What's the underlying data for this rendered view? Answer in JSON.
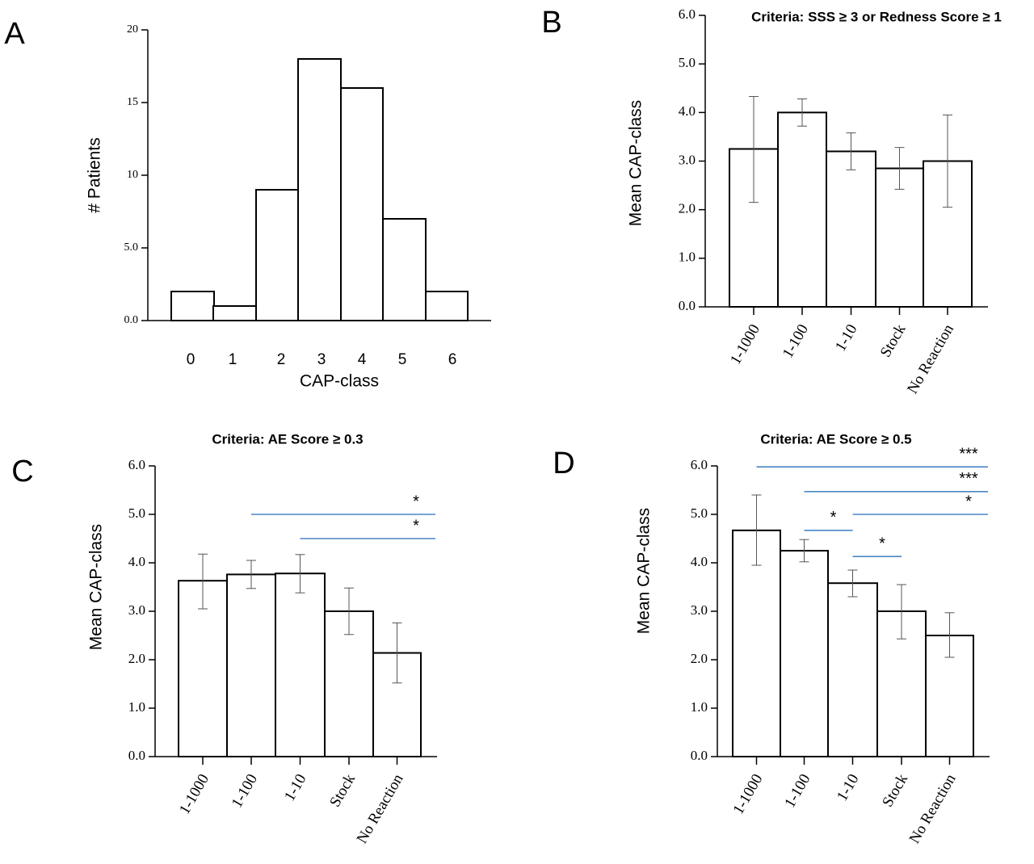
{
  "chart_data": [
    {
      "panel_label": "A",
      "type": "bar",
      "title": "",
      "xlabel": "CAP-class",
      "ylabel": "# Patients",
      "categories": [
        "0",
        "1",
        "2",
        "3",
        "4",
        "5",
        "6"
      ],
      "values": [
        2,
        1,
        9,
        18,
        16,
        7,
        2
      ],
      "ylim": [
        0,
        20
      ],
      "yticks": [
        "0.0",
        "5.0",
        "10",
        "15",
        "20"
      ],
      "grid": false
    },
    {
      "panel_label": "B",
      "type": "bar",
      "title": "Criteria: SSS ≥ 3 or Redness Score ≥ 1",
      "xlabel": "",
      "ylabel": "Mean CAP-class",
      "categories": [
        "1-1000",
        "1-100",
        "1-10",
        "Stock",
        "No Reaction"
      ],
      "values": [
        3.25,
        4.0,
        3.2,
        2.85,
        3.0
      ],
      "error_low": [
        2.15,
        3.72,
        2.82,
        2.42,
        2.05
      ],
      "error_high": [
        4.33,
        4.28,
        3.58,
        3.28,
        3.95
      ],
      "ylim": [
        0,
        6
      ],
      "yticks": [
        "0.0",
        "1.0",
        "2.0",
        "3.0",
        "4.0",
        "5.0",
        "6.0"
      ],
      "significance": [],
      "grid": false
    },
    {
      "panel_label": "C",
      "type": "bar",
      "title": "Criteria: AE Score ≥ 0.3",
      "xlabel": "",
      "ylabel": "Mean CAP-class",
      "categories": [
        "1-1000",
        "1-100",
        "1-10",
        "Stock",
        "No Reaction"
      ],
      "values": [
        3.63,
        3.76,
        3.78,
        3.0,
        2.14
      ],
      "error_low": [
        3.05,
        3.47,
        3.38,
        2.52,
        1.52
      ],
      "error_high": [
        4.18,
        4.05,
        4.17,
        3.48,
        2.76
      ],
      "ylim": [
        0,
        6
      ],
      "yticks": [
        "0.0",
        "1.0",
        "2.0",
        "3.0",
        "4.0",
        "5.0",
        "6.0"
      ],
      "significance": [
        {
          "from": "1-100",
          "to": "No Reaction",
          "y": 5.0,
          "label": "*"
        },
        {
          "from": "1-10",
          "to": "No Reaction",
          "y": 4.5,
          "label": "*"
        }
      ],
      "grid": false
    },
    {
      "panel_label": "D",
      "type": "bar",
      "title": "Criteria: AE Score ≥ 0.5",
      "xlabel": "",
      "ylabel": "Mean CAP-class",
      "categories": [
        "1-1000",
        "1-100",
        "1-10",
        "Stock",
        "No Reaction"
      ],
      "values": [
        4.67,
        4.25,
        3.58,
        3.0,
        2.5
      ],
      "error_low": [
        3.95,
        4.02,
        3.3,
        2.43,
        2.05
      ],
      "error_high": [
        5.4,
        4.48,
        3.85,
        3.55,
        2.97
      ],
      "ylim": [
        0,
        6
      ],
      "yticks": [
        "0.0",
        "1.0",
        "2.0",
        "3.0",
        "4.0",
        "5.0",
        "6.0"
      ],
      "significance": [
        {
          "from": "1-1000",
          "to": "No Reaction",
          "y": 5.98,
          "label": "***"
        },
        {
          "from": "1-100",
          "to": "No Reaction",
          "y": 5.47,
          "label": "***"
        },
        {
          "from": "1-10",
          "to": "No Reaction",
          "y": 5.0,
          "label": "*"
        },
        {
          "from": "1-100",
          "to": "1-10",
          "y": 4.67,
          "label": "*"
        },
        {
          "from": "1-10",
          "to": "Stock",
          "y": 4.13,
          "label": "*"
        }
      ],
      "grid": false
    }
  ]
}
